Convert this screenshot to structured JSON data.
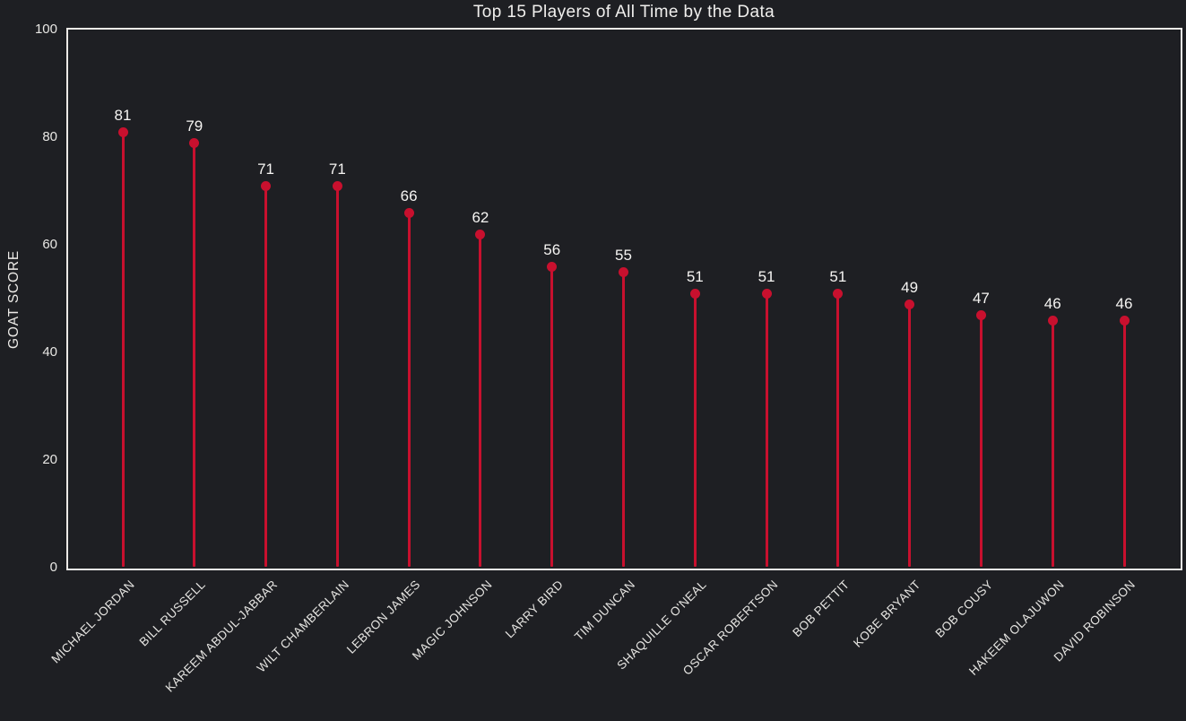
{
  "chart_data": {
    "type": "bar",
    "variant": "lollipop",
    "title": "Top 15 Players of All Time by the Data",
    "ylabel": "GOAT SCORE",
    "xlabel": "",
    "categories": [
      "MICHAEL JORDAN",
      "BILL RUSSELL",
      "KAREEM ABDUL-JABBAR",
      "WILT CHAMBERLAIN",
      "LEBRON JAMES",
      "MAGIC JOHNSON",
      "LARRY BIRD",
      "TIM DUNCAN",
      "SHAQUILLE O'NEAL",
      "OSCAR ROBERTSON",
      "BOB PETTIT",
      "KOBE BRYANT",
      "BOB COUSY",
      "HAKEEM OLAJUWON",
      "DAVID ROBINSON"
    ],
    "values": [
      81,
      79,
      71,
      71,
      66,
      62,
      56,
      55,
      51,
      51,
      51,
      49,
      47,
      46,
      46
    ],
    "value_labels": [
      "81",
      "79",
      "71",
      "71",
      "66",
      "62",
      "56",
      "55",
      "51",
      "51",
      "51",
      "49",
      "47",
      "46",
      "46"
    ],
    "ylim": [
      0,
      100
    ],
    "yticks": [
      0,
      20,
      40,
      60,
      80,
      100
    ],
    "grid": false,
    "legend": null,
    "colors": {
      "background": "#1e1f23",
      "stem": "#c8102e",
      "marker": "#c8102e",
      "tick_text": "#e8e7e4",
      "value_text": "#f5f4f2",
      "axis_border": "#eceae7"
    }
  }
}
